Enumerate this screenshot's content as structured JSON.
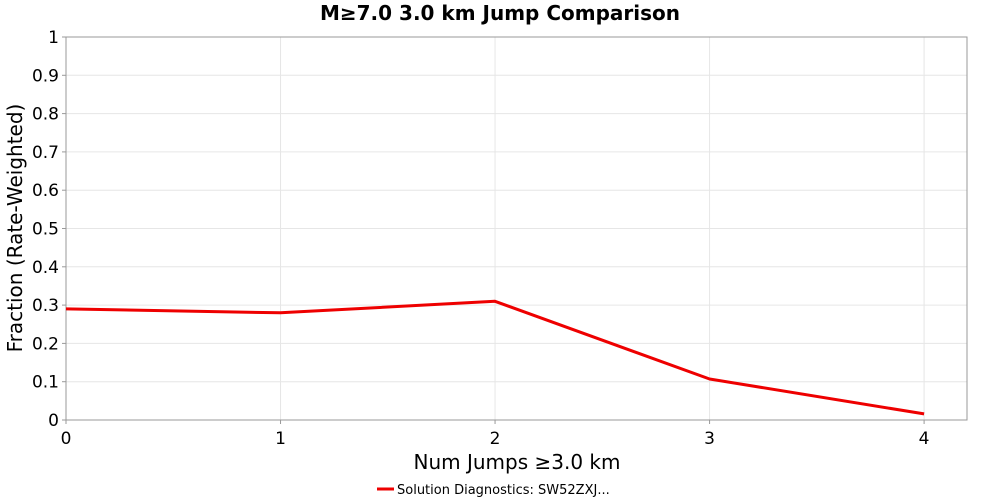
{
  "chart_data": {
    "type": "line",
    "title": "M≥7.0 3.0 km Jump Comparison",
    "xlabel": "Num Jumps ≥3.0 km",
    "ylabel": "Fraction (Rate-Weighted)",
    "xlim": [
      0,
      4.2
    ],
    "ylim": [
      0,
      1
    ],
    "x_ticks": [
      "0",
      "1",
      "2",
      "3",
      "4"
    ],
    "y_ticks": [
      "0",
      "0.1",
      "0.2",
      "0.3",
      "0.4",
      "0.5",
      "0.6",
      "0.7",
      "0.8",
      "0.9",
      "1"
    ],
    "grid": true,
    "legend_position": "bottom-center",
    "series": [
      {
        "name": "Solution Diagnostics: SW52ZXJ...",
        "color": "#ee0000",
        "x": [
          0,
          1,
          2,
          3,
          4
        ],
        "y": [
          0.29,
          0.28,
          0.31,
          0.107,
          0.016
        ]
      }
    ]
  }
}
